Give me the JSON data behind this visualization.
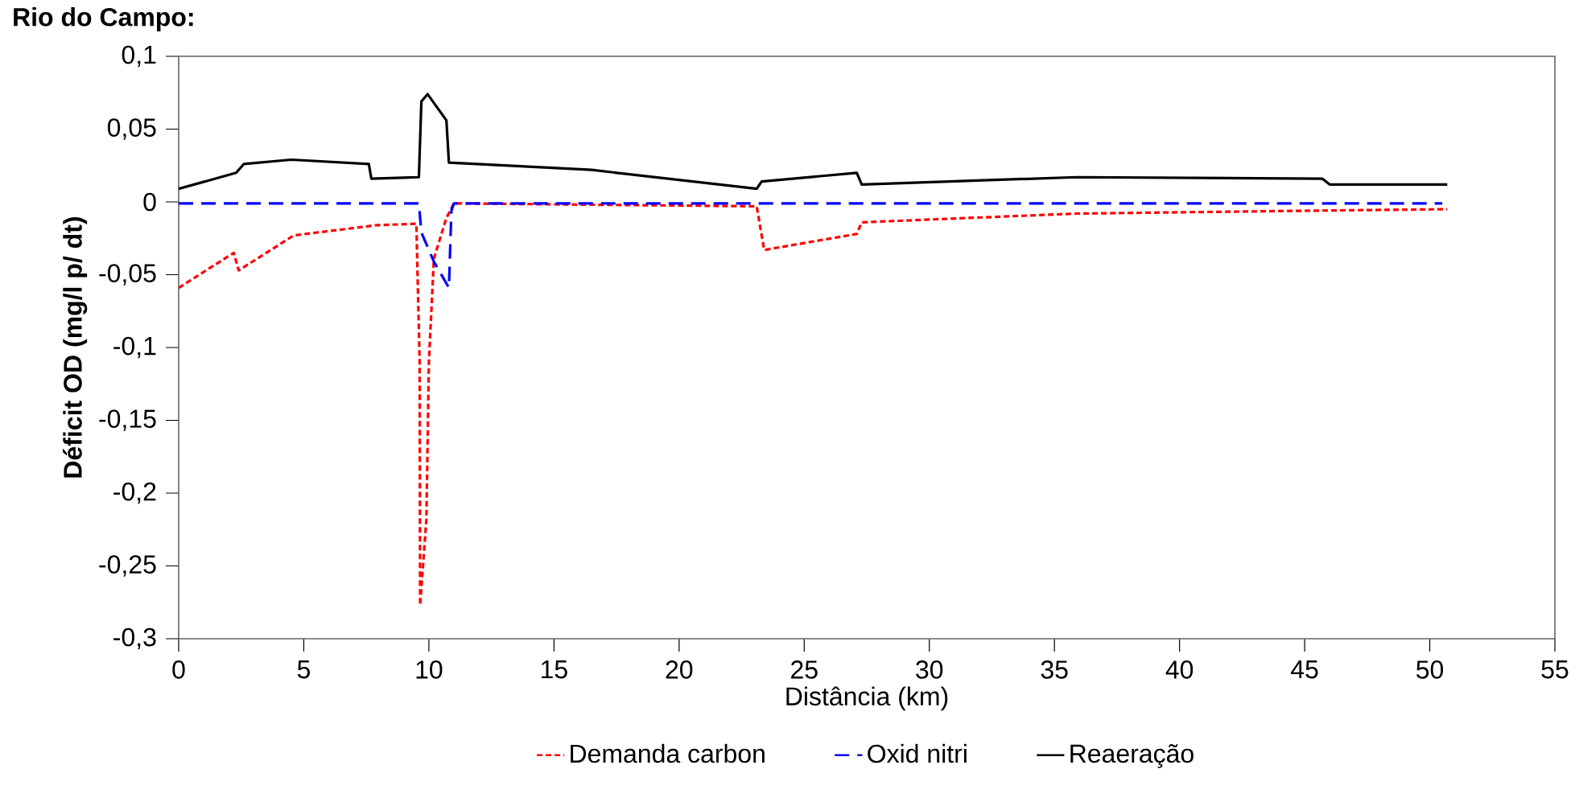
{
  "chart_data": {
    "type": "line",
    "title": "Rio do Campo:",
    "xlabel": "Distância (km)",
    "ylabel": "Déficit OD (mg/l p/ dt)",
    "xlim": [
      0,
      55
    ],
    "xticks": [
      0,
      5,
      10,
      15,
      20,
      25,
      30,
      35,
      40,
      45,
      50,
      55
    ],
    "ylim": [
      -0.3,
      0.1
    ],
    "yticks": [
      {
        "value": -0.3,
        "label": "-0,3"
      },
      {
        "value": -0.25,
        "label": "-0,25"
      },
      {
        "value": -0.2,
        "label": "-0,2"
      },
      {
        "value": -0.15,
        "label": "-0,15"
      },
      {
        "value": -0.1,
        "label": "-0,1"
      },
      {
        "value": -0.05,
        "label": "-0,05"
      },
      {
        "value": 0,
        "label": "0"
      },
      {
        "value": 0.05,
        "label": "0,05"
      },
      {
        "value": 0.1,
        "label": "0,1"
      }
    ],
    "grid": false,
    "legend": "bottom",
    "marker": "none",
    "series": [
      {
        "name": "Demanda carbon",
        "color": "#ff0000",
        "line_style": "dotted",
        "x": [
          0,
          2.2,
          2.4,
          4.6,
          7.9,
          9.5,
          9.63,
          9.65,
          9.9,
          10.0,
          10.2,
          10.7,
          11.0,
          23.1,
          23.4,
          27.1,
          27.3,
          35.9,
          45.4,
          50.7
        ],
        "values": [
          -0.059,
          -0.035,
          -0.047,
          -0.023,
          -0.016,
          -0.015,
          -0.11,
          -0.277,
          -0.218,
          -0.11,
          -0.039,
          -0.011,
          -0.001,
          -0.003,
          -0.033,
          -0.022,
          -0.014,
          -0.008,
          -0.006,
          -0.005
        ]
      },
      {
        "name": "Oxid nitri",
        "color": "#0000ff",
        "line_style": "dashed",
        "x": [
          0,
          9.6,
          9.7,
          10.2,
          10.8,
          10.9,
          11.0,
          50.5
        ],
        "values": [
          -0.001,
          -0.001,
          -0.021,
          -0.041,
          -0.059,
          -0.006,
          -0.001,
          -0.001
        ]
      },
      {
        "name": "Reaeração",
        "color": "#000000",
        "line_style": "solid",
        "x": [
          0,
          2.3,
          2.6,
          4.5,
          7.6,
          7.7,
          9.6,
          9.7,
          9.95,
          10.7,
          10.8,
          16.5,
          23.1,
          23.3,
          27.1,
          27.3,
          35.9,
          45.7,
          46.0,
          50.7
        ],
        "values": [
          0.009,
          0.02,
          0.026,
          0.029,
          0.026,
          0.016,
          0.017,
          0.069,
          0.074,
          0.056,
          0.027,
          0.022,
          0.009,
          0.014,
          0.02,
          0.012,
          0.017,
          0.016,
          0.012,
          0.012
        ]
      }
    ]
  }
}
